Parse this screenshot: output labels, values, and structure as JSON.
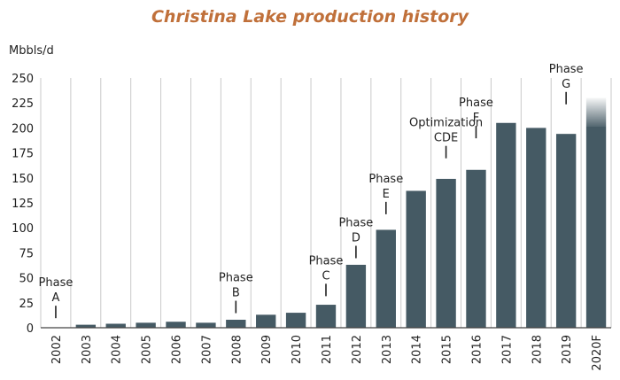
{
  "chart_data": {
    "type": "bar",
    "title": "Christina Lake production history",
    "ylabel": "Mbbls/d",
    "xlabel": "",
    "ylim": [
      0,
      250
    ],
    "yticks": [
      0,
      25,
      50,
      75,
      100,
      125,
      150,
      175,
      200,
      225,
      250
    ],
    "grid": "vertical",
    "categories": [
      "2002",
      "2003",
      "2004",
      "2005",
      "2006",
      "2007",
      "2008",
      "2009",
      "2010",
      "2011",
      "2012",
      "2013",
      "2014",
      "2015",
      "2016",
      "2017",
      "2018",
      "2019",
      "2020F"
    ],
    "values": [
      0,
      3,
      4,
      5,
      6,
      5,
      8,
      13,
      15,
      23,
      63,
      98,
      137,
      149,
      158,
      205,
      200,
      194,
      202
    ],
    "forecast_range": {
      "category": "2020F",
      "low": 202,
      "high": 230
    },
    "bar_color": "#455a64",
    "title_color": "#c0703a",
    "annotations": [
      {
        "category": "2002",
        "lines": [
          "Phase",
          "A"
        ],
        "marker_top": 22
      },
      {
        "category": "2008",
        "lines": [
          "Phase",
          "B"
        ],
        "marker_top": 27
      },
      {
        "category": "2011",
        "lines": [
          "Phase",
          "C"
        ],
        "marker_top": 44
      },
      {
        "category": "2012",
        "lines": [
          "Phase",
          "D"
        ],
        "marker_top": 82
      },
      {
        "category": "2013",
        "lines": [
          "Phase",
          "E"
        ],
        "marker_top": 126
      },
      {
        "category": "2015",
        "lines": [
          "Optimization",
          "CDE"
        ],
        "marker_top": 182
      },
      {
        "category": "2016",
        "lines": [
          "Phase",
          "F"
        ],
        "marker_top": 202
      },
      {
        "category": "2019",
        "lines": [
          "Phase",
          "G"
        ],
        "marker_top": 236
      }
    ]
  }
}
